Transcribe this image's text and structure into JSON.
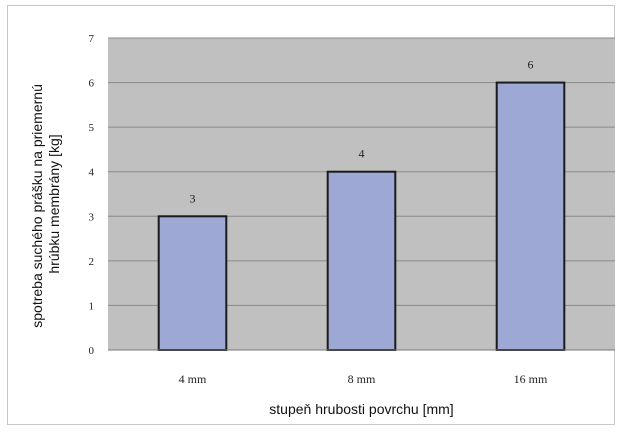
{
  "chart_data": {
    "type": "bar",
    "categories": [
      "4 mm",
      "8 mm",
      "16 mm"
    ],
    "values": [
      3,
      4,
      6
    ],
    "data_labels": [
      "3",
      "4",
      "6"
    ],
    "xlabel": "stupeň hrubosti povrchu [mm]",
    "ylabel_lines": [
      "spotreba suchého prášku na priemernú",
      "hrúbku membrány [kg]"
    ],
    "ylim": [
      0,
      7
    ],
    "yticks": [
      0,
      1,
      2,
      3,
      4,
      5,
      6,
      7
    ],
    "grid": true,
    "legend": "none",
    "colors": {
      "bar_fill": "#9da8d4",
      "bar_stroke": "#1a1a1a",
      "plot_bg": "#c0c0c0",
      "grid": "#8a8a8a"
    }
  }
}
